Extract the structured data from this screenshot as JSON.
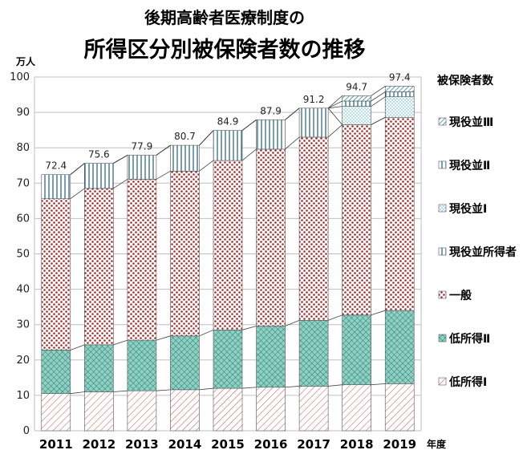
{
  "title_line1": "後期高齢者医療制度の",
  "title_line2": "所得区分別被保険者数の推移",
  "chart_data": {
    "type": "bar",
    "stacked": true,
    "y_unit": "万人",
    "x_unit": "年度",
    "legend_title": "被保険者数",
    "ylim": [
      0,
      100
    ],
    "yticks": [
      0,
      10,
      20,
      30,
      40,
      50,
      60,
      70,
      80,
      90,
      100
    ],
    "grid": true,
    "legend_position": "right",
    "categories": [
      "2011",
      "2012",
      "2013",
      "2014",
      "2015",
      "2016",
      "2017",
      "2018",
      "2019"
    ],
    "totals": [
      "72.4",
      "75.6",
      "77.9",
      "80.7",
      "84.9",
      "87.9",
      "91.2",
      "94.7",
      "97.4"
    ],
    "series": [
      {
        "name": "低所得Ⅰ",
        "color": "#c0504d",
        "pattern": "diagonal",
        "values": [
          10.5,
          11.0,
          11.3,
          11.6,
          12.0,
          12.3,
          12.6,
          13.0,
          13.3
        ]
      },
      {
        "name": "低所得Ⅱ",
        "color": "#4bacc6",
        "pattern": "crosshatch",
        "values": [
          12.3,
          13.3,
          14.3,
          15.2,
          16.5,
          17.3,
          18.6,
          19.7,
          20.7
        ]
      },
      {
        "name": "一般",
        "color": "#a52a2a",
        "pattern": "dots",
        "values": [
          42.8,
          44.2,
          45.5,
          46.6,
          47.9,
          50.0,
          51.8,
          53.8,
          54.6
        ]
      },
      {
        "name": "現役並所得者",
        "color": "#1f5f7a",
        "pattern": "vlines",
        "values": [
          6.8,
          7.1,
          6.8,
          7.3,
          8.5,
          8.3,
          8.2,
          0,
          0
        ]
      },
      {
        "name": "現役並Ⅰ",
        "color": "#4bacc6",
        "pattern": "smalldots",
        "values": [
          0,
          0,
          0,
          0,
          0,
          0,
          0,
          5.2,
          5.8
        ]
      },
      {
        "name": "現役並Ⅱ",
        "color": "#1f5f7a",
        "pattern": "vlines",
        "values": [
          0,
          0,
          0,
          0,
          0,
          0,
          0,
          1.5,
          1.4
        ]
      },
      {
        "name": "現役並Ⅲ",
        "color": "#31859c",
        "pattern": "diagonal-blue",
        "values": [
          0,
          0,
          0,
          0,
          0,
          0,
          0,
          1.5,
          1.6
        ]
      }
    ]
  }
}
